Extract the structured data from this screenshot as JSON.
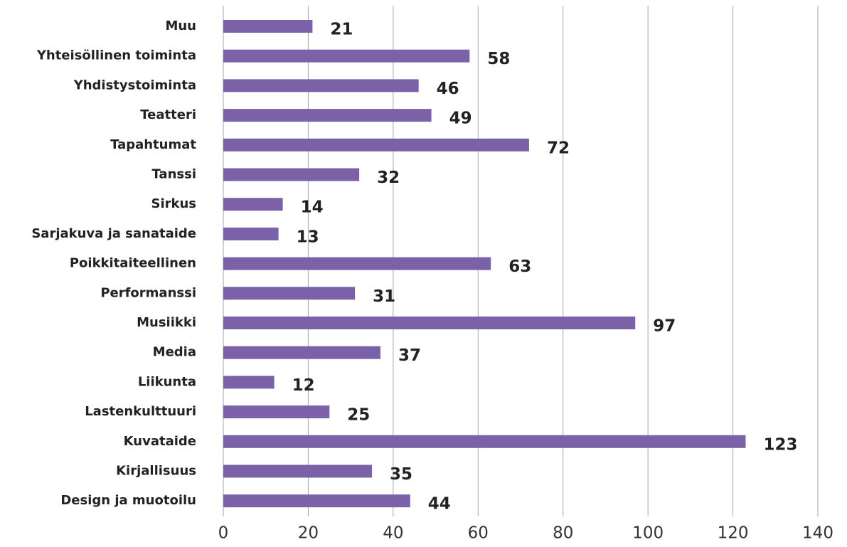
{
  "chart_data": {
    "type": "bar",
    "orientation": "horizontal",
    "categories": [
      "Muu",
      "Yhteisöllinen toiminta",
      "Yhdistystoiminta",
      "Teatteri",
      "Tapahtumat",
      "Tanssi",
      "Sirkus",
      "Sarjakuva ja sanataide",
      "Poikkitaiteellinen",
      "Performanssi",
      "Musiikki",
      "Media",
      "Liikunta",
      "Lastenkulttuuri",
      "Kuvataide",
      "Kirjallisuus",
      "Design ja muotoilu"
    ],
    "values": [
      21,
      58,
      46,
      49,
      72,
      32,
      14,
      13,
      63,
      31,
      97,
      37,
      12,
      25,
      123,
      35,
      44
    ],
    "color": "#7b62a8",
    "xlim": [
      0,
      140
    ],
    "xticks": [
      0,
      20,
      40,
      60,
      80,
      100,
      120,
      140
    ],
    "grid": true
  }
}
